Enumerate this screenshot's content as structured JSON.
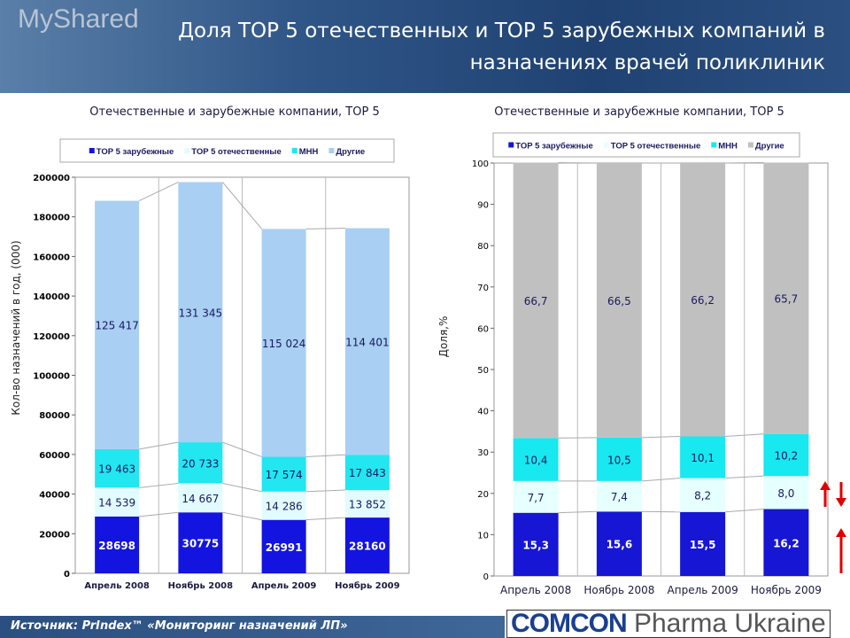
{
  "header": {
    "title_line1": "Доля TOP 5 отечественных и TOP 5 зарубежных компаний в",
    "title_line2": "назначениях врачей поликлиник"
  },
  "footer": {
    "source": "Источник: PrIndex™ «Мониторинг назначений ЛП»",
    "logo_brand": "COMCON",
    "logo_rest": " Pharma Ukraine",
    "watermark": "MyShared"
  },
  "colors": {
    "header_bg": "#1f4272",
    "arrow": "#e00000"
  },
  "chart_data": [
    {
      "type": "bar",
      "stacked": true,
      "title": "Отечественные и зарубежные компании, TOP 5",
      "ylabel": "Кол-во назначений в год, (000)",
      "xlabel": "",
      "categories": [
        "Апрель 2008",
        "Ноябрь 2008",
        "Апрель 2009",
        "Ноябрь 2009"
      ],
      "ylim": [
        0,
        200000
      ],
      "yticks": [
        "0",
        "20000",
        "40000",
        "60000",
        "80000",
        "100000",
        "120000",
        "140000",
        "160000",
        "180000",
        "200000"
      ],
      "grid": true,
      "legend": "top",
      "series": [
        {
          "name": "TOP 5 зарубежные",
          "color": "#1414e0",
          "values": [
            28698,
            30775,
            26991,
            28160
          ],
          "labels": [
            "28698",
            "30775",
            "26991",
            "28160"
          ]
        },
        {
          "name": "TOP 5 отечественные",
          "color": "#e2fbff",
          "values": [
            14539,
            14667,
            14286,
            13852
          ],
          "labels": [
            "14 539",
            "14 667",
            "14 286",
            "13 852"
          ]
        },
        {
          "name": "МНН",
          "color": "#22e6f0",
          "values": [
            19463,
            20733,
            17574,
            17843
          ],
          "labels": [
            "19 463",
            "20 733",
            "17 574",
            "17 843"
          ]
        },
        {
          "name": "Другие",
          "color": "#a9cff2",
          "values": [
            125417,
            131345,
            115024,
            114401
          ],
          "labels": [
            "125 417",
            "131 345",
            "115 024",
            "114 401"
          ]
        }
      ]
    },
    {
      "type": "bar",
      "stacked": true,
      "title": "Отечественные и зарубежные компании, TOP 5",
      "ylabel": "Доля,%",
      "xlabel": "",
      "categories": [
        "Апрель 2008",
        "Ноябрь 2008",
        "Апрель 2009",
        "Ноябрь 2009"
      ],
      "ylim": [
        0,
        100
      ],
      "yticks": [
        "0",
        "10",
        "20",
        "30",
        "40",
        "50",
        "60",
        "70",
        "80",
        "90",
        "100"
      ],
      "grid": true,
      "legend": "top",
      "series": [
        {
          "name": "TOP 5 зарубежные",
          "color": "#1616d4",
          "values": [
            15.3,
            15.6,
            15.5,
            16.2
          ],
          "labels": [
            "15,3",
            "15,6",
            "15,5",
            "16,2"
          ]
        },
        {
          "name": "TOP 5 отечественные",
          "color": "#e6ffff",
          "values": [
            7.7,
            7.4,
            8.2,
            8.0
          ],
          "labels": [
            "7,7",
            "7,4",
            "8,2",
            "8,0"
          ]
        },
        {
          "name": "МНН",
          "color": "#18e8f0",
          "values": [
            10.4,
            10.5,
            10.1,
            10.2
          ],
          "labels": [
            "10,4",
            "10,5",
            "10,1",
            "10,2"
          ]
        },
        {
          "name": "Другие",
          "color": "#c0c0c0",
          "values": [
            66.7,
            66.5,
            66.2,
            65.7
          ],
          "labels": [
            "66,7",
            "66,5",
            "66,2",
            "65,7"
          ]
        }
      ]
    }
  ]
}
